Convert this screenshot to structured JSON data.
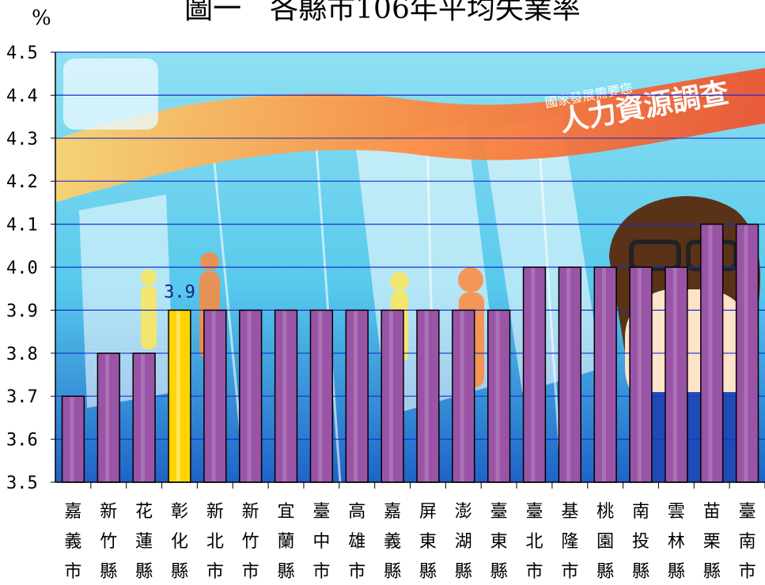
{
  "chart": {
    "title": "圖一　各縣市106年平均失業率",
    "unit": "%"
  },
  "colors": {
    "bar": "#9a54a6",
    "bar_highlight": "#ffd400",
    "grid": "#1d2fcf"
  },
  "background_text": {
    "banner": "人力資源調查",
    "banner_sub": "國家發展需要您"
  },
  "chart_data": {
    "type": "bar",
    "title": "圖一　各縣市106年平均失業率",
    "ylabel": "%",
    "xlabel": "",
    "ylim": [
      3.5,
      4.5
    ],
    "ytick_step": 0.1,
    "grid": true,
    "highlight_index": 3,
    "categories": [
      "嘉義市",
      "新竹縣",
      "花蓮縣",
      "彰化縣",
      "新北市",
      "新竹市",
      "宜蘭縣",
      "臺中市",
      "高雄市",
      "嘉義縣",
      "屏東縣",
      "澎湖縣",
      "臺東縣",
      "臺北市",
      "基隆市",
      "桃園縣",
      "南投縣",
      "雲林縣",
      "苗栗縣",
      "臺南市"
    ],
    "values": [
      3.7,
      3.8,
      3.8,
      3.9,
      3.9,
      3.9,
      3.9,
      3.9,
      3.9,
      3.9,
      3.9,
      3.9,
      3.9,
      4.0,
      4.0,
      4.0,
      4.0,
      4.0,
      4.1,
      4.1
    ],
    "data_labels": [
      {
        "index": 3,
        "text": "3.9"
      }
    ]
  }
}
